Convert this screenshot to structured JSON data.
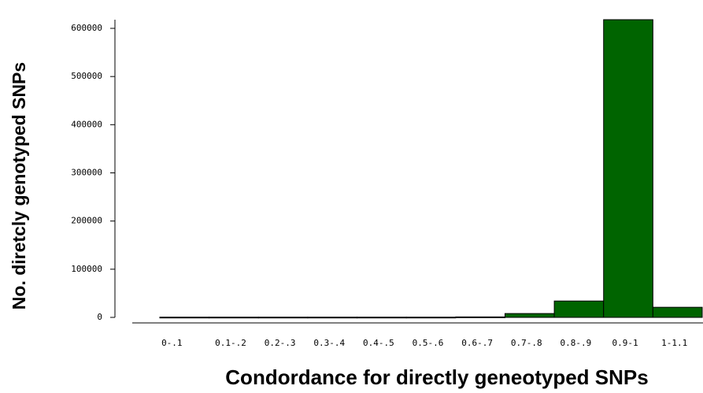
{
  "chart_data": {
    "type": "bar",
    "xlabel": "Condordance for directly geneotyped SNPs",
    "ylabel": "No. diretcly genotyped SNPs",
    "categories": [
      "0-.1",
      "0.1-.2",
      "0.2-.3",
      "0.3-.4",
      "0.4-.5",
      "0.5-.6",
      "0.6-.7",
      "0.7-.8",
      "0.8-.9",
      "0.9-1",
      "1-1.1"
    ],
    "values": [
      500,
      500,
      500,
      500,
      500,
      500,
      1000,
      8000,
      34000,
      618000,
      21000
    ],
    "color": "#006400",
    "ylim": [
      0,
      600000
    ],
    "yticks": [
      0,
      100000,
      200000,
      300000,
      400000,
      500000,
      600000
    ]
  }
}
